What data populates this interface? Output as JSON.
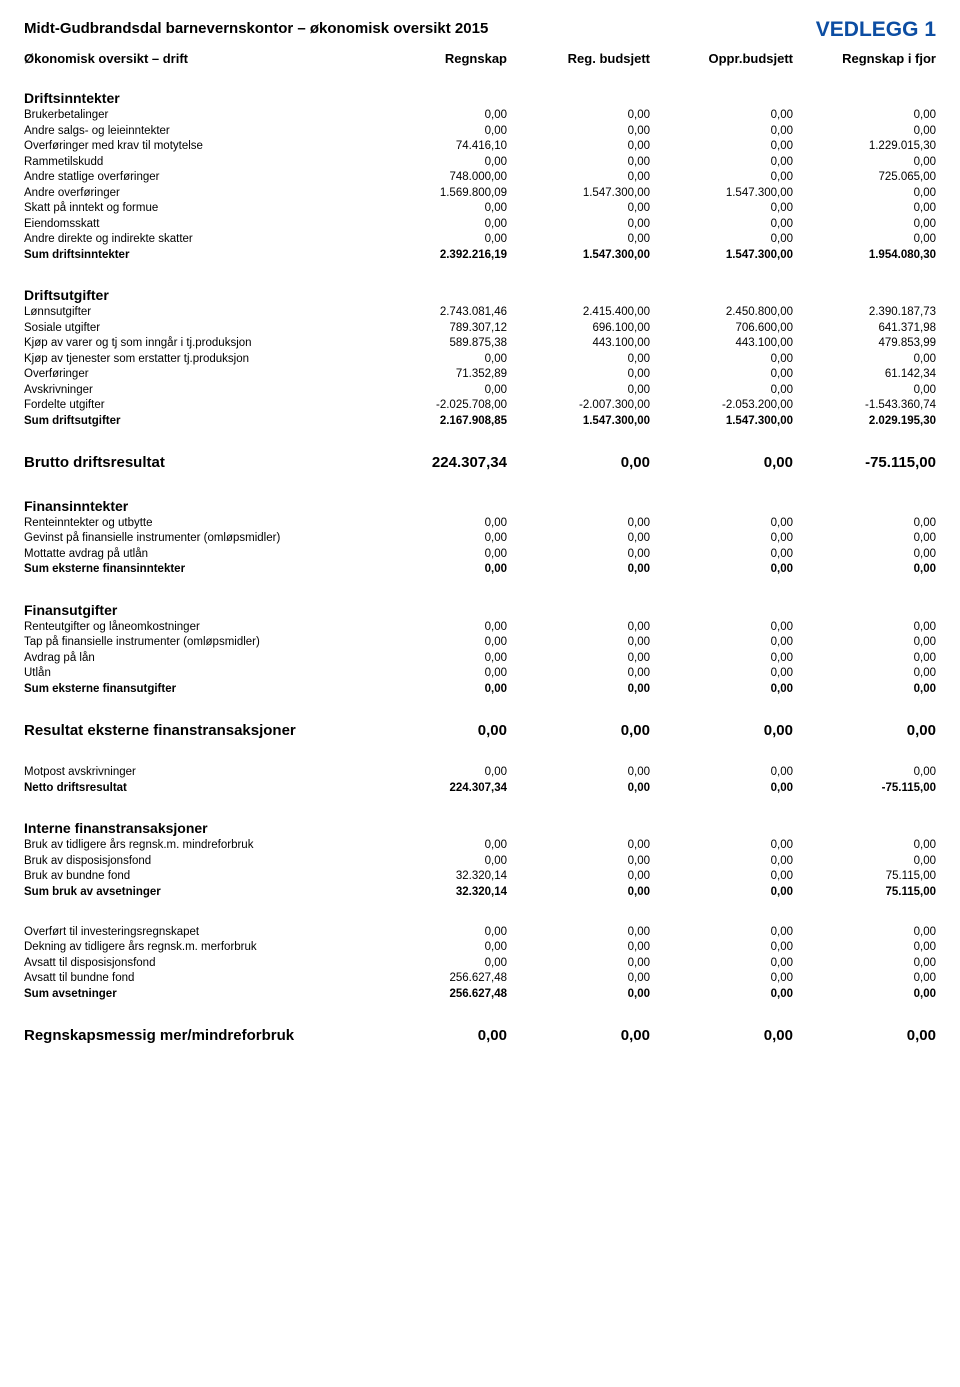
{
  "attachment_label": "VEDLEGG 1",
  "title": "Midt-Gudbrandsdal barnevernskontor – økonomisk oversikt 2015",
  "header": {
    "c0": "Økonomisk oversikt – drift",
    "c1": "Regnskap",
    "c2": "Reg. budsjett",
    "c3": "Oppr.budsjett",
    "c4": "Regnskap i fjor"
  },
  "colors": {
    "accent": "#0c4da2",
    "text": "#000000",
    "bg": "#ffffff"
  },
  "sections": [
    {
      "head": "Driftsinntekter",
      "rows": [
        {
          "l": "Brukerbetalinger",
          "v": [
            "0,00",
            "0,00",
            "0,00",
            "0,00"
          ]
        },
        {
          "l": "Andre salgs- og leieinntekter",
          "v": [
            "0,00",
            "0,00",
            "0,00",
            "0,00"
          ]
        },
        {
          "l": "Overføringer med krav til motytelse",
          "v": [
            "74.416,10",
            "0,00",
            "0,00",
            "1.229.015,30"
          ]
        },
        {
          "l": "Rammetilskudd",
          "v": [
            "0,00",
            "0,00",
            "0,00",
            "0,00"
          ]
        },
        {
          "l": "Andre statlige overføringer",
          "v": [
            "748.000,00",
            "0,00",
            "0,00",
            "725.065,00"
          ]
        },
        {
          "l": "Andre overføringer",
          "v": [
            "1.569.800,09",
            "1.547.300,00",
            "1.547.300,00",
            "0,00"
          ]
        },
        {
          "l": "Skatt på inntekt og formue",
          "v": [
            "0,00",
            "0,00",
            "0,00",
            "0,00"
          ]
        },
        {
          "l": "Eiendomsskatt",
          "v": [
            "0,00",
            "0,00",
            "0,00",
            "0,00"
          ]
        },
        {
          "l": "Andre direkte og indirekte skatter",
          "v": [
            "0,00",
            "0,00",
            "0,00",
            "0,00"
          ]
        },
        {
          "l": "Sum driftsinntekter",
          "v": [
            "2.392.216,19",
            "1.547.300,00",
            "1.547.300,00",
            "1.954.080,30"
          ],
          "bold": true
        }
      ]
    },
    {
      "head": "Driftsutgifter",
      "rows": [
        {
          "l": "Lønnsutgifter",
          "v": [
            "2.743.081,46",
            "2.415.400,00",
            "2.450.800,00",
            "2.390.187,73"
          ]
        },
        {
          "l": "Sosiale utgifter",
          "v": [
            "789.307,12",
            "696.100,00",
            "706.600,00",
            "641.371,98"
          ]
        },
        {
          "l": "Kjøp av varer og tj som inngår i tj.produksjon",
          "v": [
            "589.875,38",
            "443.100,00",
            "443.100,00",
            "479.853,99"
          ]
        },
        {
          "l": "Kjøp av tjenester som erstatter tj.produksjon",
          "v": [
            "0,00",
            "0,00",
            "0,00",
            "0,00"
          ]
        },
        {
          "l": "Overføringer",
          "v": [
            "71.352,89",
            "0,00",
            "0,00",
            "61.142,34"
          ]
        },
        {
          "l": "Avskrivninger",
          "v": [
            "0,00",
            "0,00",
            "0,00",
            "0,00"
          ]
        },
        {
          "l": "Fordelte utgifter",
          "v": [
            "-2.025.708,00",
            "-2.007.300,00",
            "-2.053.200,00",
            "-1.543.360,74"
          ]
        },
        {
          "l": "Sum driftsutgifter",
          "v": [
            "2.167.908,85",
            "1.547.300,00",
            "1.547.300,00",
            "2.029.195,30"
          ],
          "bold": true
        }
      ]
    },
    {
      "big_rows": [
        {
          "l": "Brutto driftsresultat",
          "v": [
            "224.307,34",
            "0,00",
            "0,00",
            "-75.115,00"
          ]
        }
      ]
    },
    {
      "head": "Finansinntekter",
      "rows": [
        {
          "l": "Renteinntekter og utbytte",
          "v": [
            "0,00",
            "0,00",
            "0,00",
            "0,00"
          ]
        },
        {
          "l": "Gevinst på finansielle instrumenter (omløpsmidler)",
          "v": [
            "0,00",
            "0,00",
            "0,00",
            "0,00"
          ]
        },
        {
          "l": "Mottatte avdrag på utlån",
          "v": [
            "0,00",
            "0,00",
            "0,00",
            "0,00"
          ]
        },
        {
          "l": "Sum eksterne finansinntekter",
          "v": [
            "0,00",
            "0,00",
            "0,00",
            "0,00"
          ],
          "bold": true
        }
      ]
    },
    {
      "head": "Finansutgifter",
      "rows": [
        {
          "l": "Renteutgifter og låneomkostninger",
          "v": [
            "0,00",
            "0,00",
            "0,00",
            "0,00"
          ]
        },
        {
          "l": "Tap på finansielle instrumenter (omløpsmidler)",
          "v": [
            "0,00",
            "0,00",
            "0,00",
            "0,00"
          ]
        },
        {
          "l": "Avdrag på lån",
          "v": [
            "0,00",
            "0,00",
            "0,00",
            "0,00"
          ]
        },
        {
          "l": "Utlån",
          "v": [
            "0,00",
            "0,00",
            "0,00",
            "0,00"
          ]
        },
        {
          "l": "Sum eksterne finansutgifter",
          "v": [
            "0,00",
            "0,00",
            "0,00",
            "0,00"
          ],
          "bold": true
        }
      ]
    },
    {
      "big_rows": [
        {
          "l": "Resultat eksterne finanstransaksjoner",
          "v": [
            "0,00",
            "0,00",
            "0,00",
            "0,00"
          ]
        }
      ]
    },
    {
      "rows": [
        {
          "l": "Motpost avskrivninger",
          "v": [
            "0,00",
            "0,00",
            "0,00",
            "0,00"
          ]
        },
        {
          "l": "Netto driftsresultat",
          "v": [
            "224.307,34",
            "0,00",
            "0,00",
            "-75.115,00"
          ],
          "bold": true
        }
      ]
    },
    {
      "head": "Interne finanstransaksjoner",
      "rows": [
        {
          "l": "Bruk av tidligere års regnsk.m. mindreforbruk",
          "v": [
            "0,00",
            "0,00",
            "0,00",
            "0,00"
          ]
        },
        {
          "l": "Bruk av disposisjonsfond",
          "v": [
            "0,00",
            "0,00",
            "0,00",
            "0,00"
          ]
        },
        {
          "l": "Bruk av bundne fond",
          "v": [
            "32.320,14",
            "0,00",
            "0,00",
            "75.115,00"
          ]
        },
        {
          "l": "Sum bruk av avsetninger",
          "v": [
            "32.320,14",
            "0,00",
            "0,00",
            "75.115,00"
          ],
          "bold": true
        }
      ]
    },
    {
      "rows": [
        {
          "l": "Overført til investeringsregnskapet",
          "v": [
            "0,00",
            "0,00",
            "0,00",
            "0,00"
          ]
        },
        {
          "l": "Dekning av tidligere års regnsk.m. merforbruk",
          "v": [
            "0,00",
            "0,00",
            "0,00",
            "0,00"
          ]
        },
        {
          "l": "Avsatt til disposisjonsfond",
          "v": [
            "0,00",
            "0,00",
            "0,00",
            "0,00"
          ]
        },
        {
          "l": "Avsatt til bundne fond",
          "v": [
            "256.627,48",
            "0,00",
            "0,00",
            "0,00"
          ]
        },
        {
          "l": "Sum avsetninger",
          "v": [
            "256.627,48",
            "0,00",
            "0,00",
            "0,00"
          ],
          "bold": true
        }
      ]
    },
    {
      "big_rows": [
        {
          "l": "Regnskapsmessig mer/mindreforbruk",
          "v": [
            "0,00",
            "0,00",
            "0,00",
            "0,00"
          ]
        }
      ]
    }
  ]
}
